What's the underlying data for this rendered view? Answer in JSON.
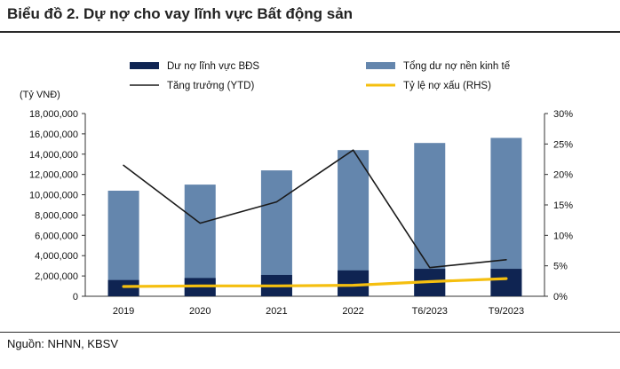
{
  "title": "Biểu đồ 2. Dự nợ cho vay lĩnh vực Bất động sản",
  "source": "Nguồn: NHNN, KBSV",
  "chart_data": {
    "type": "bar",
    "categories": [
      "2019",
      "2020",
      "2021",
      "2022",
      "T6/2023",
      "T9/2023"
    ],
    "left_axis_unit": "(Tỷ VNĐ)",
    "ylim": [
      0,
      18000000
    ],
    "yticks": [
      "0",
      "2,000,000",
      "4,000,000",
      "6,000,000",
      "8,000,000",
      "10,000,000",
      "12,000,000",
      "14,000,000",
      "16,000,000",
      "18,000,000"
    ],
    "y2lim": [
      0,
      30
    ],
    "y2ticks": [
      "0%",
      "5%",
      "10%",
      "15%",
      "20%",
      "25%",
      "30%"
    ],
    "legend_position": "top",
    "series": [
      {
        "name": "Dư nợ lĩnh vực BĐS",
        "type": "bar",
        "axis": "left",
        "color": "#0f2452",
        "values": [
          1600000,
          1800000,
          2100000,
          2550000,
          2700000,
          2700000
        ]
      },
      {
        "name": "Tổng dư nợ nền kinh tế",
        "type": "bar",
        "axis": "left",
        "color": "#6486ad",
        "values": [
          10400000,
          11000000,
          12400000,
          14400000,
          15100000,
          15600000
        ]
      },
      {
        "name": "Tăng trưởng (YTD)",
        "type": "line",
        "axis": "right",
        "color": "#1a1a1a",
        "values": [
          21.5,
          12.0,
          15.5,
          24.0,
          4.7,
          6.0
        ]
      },
      {
        "name": "Tỷ lệ nợ xấu (RHS)",
        "type": "line",
        "axis": "right",
        "color": "#f5bf0f",
        "values": [
          1.6,
          1.7,
          1.7,
          1.8,
          2.4,
          2.9
        ]
      }
    ]
  }
}
